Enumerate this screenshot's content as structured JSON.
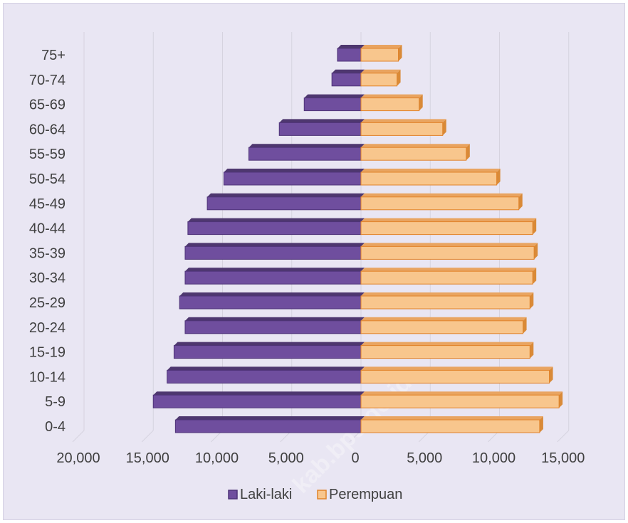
{
  "chart_data": {
    "type": "bar",
    "orientation": "horizontal-pyramid",
    "categories": [
      "0-4",
      "5-9",
      "10-14",
      "15-19",
      "20-24",
      "25-29",
      "30-34",
      "35-39",
      "40-44",
      "45-49",
      "50-54",
      "55-59",
      "60-64",
      "65-69",
      "70-74",
      "75+"
    ],
    "series": [
      {
        "name": "Laki-laki",
        "color": "#6f4e9e",
        "values": [
          13400,
          15000,
          14000,
          13500,
          12700,
          13100,
          12700,
          12700,
          12500,
          11100,
          9900,
          8100,
          5900,
          4100,
          2100,
          1700
        ]
      },
      {
        "name": "Perempuan",
        "color": "#f8c68d",
        "values": [
          12900,
          14300,
          13600,
          12200,
          11700,
          12200,
          12400,
          12500,
          12400,
          11400,
          9800,
          7600,
          5900,
          4200,
          2600,
          2700
        ]
      }
    ],
    "xticks": [
      "20,000",
      "15,000",
      "10,000",
      "5,000",
      "0",
      "5,000",
      "10,000",
      "15,000"
    ],
    "xlim": [
      -20000,
      15000
    ],
    "grid": true,
    "legend_position": "bottom",
    "watermark": "kab.bps.go.id"
  }
}
